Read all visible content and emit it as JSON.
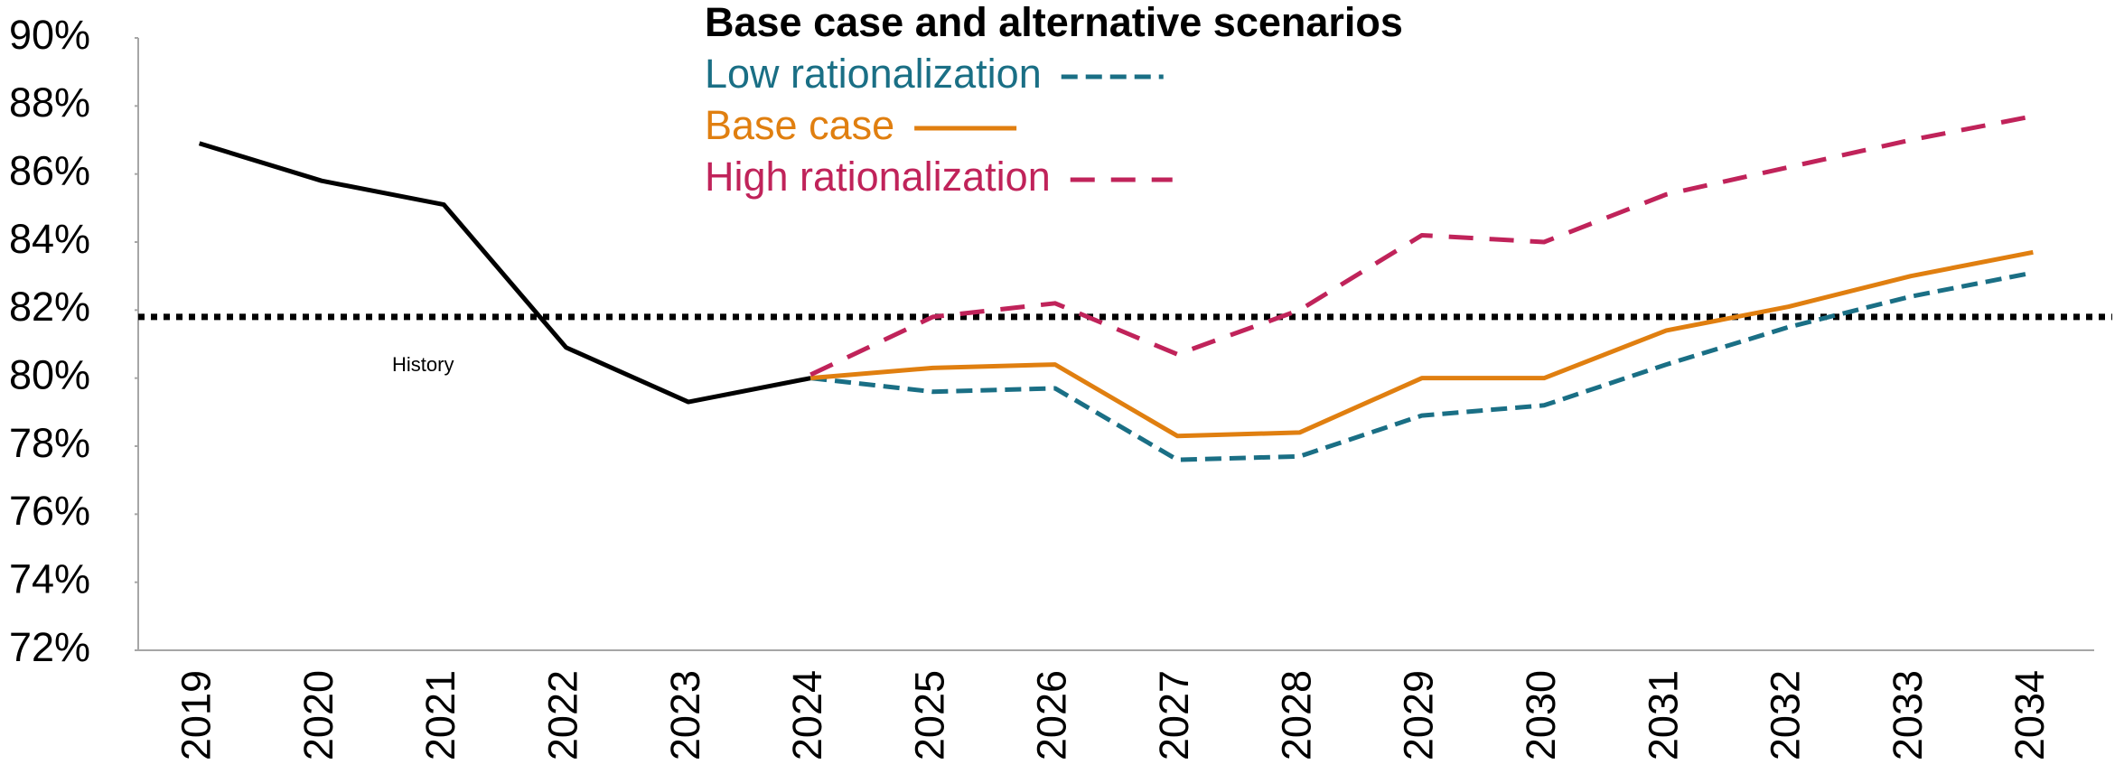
{
  "chart_data": {
    "type": "line",
    "title": "Base case and alternative scenarios",
    "categories": [
      "2019",
      "2020",
      "2021",
      "2022",
      "2023",
      "2024",
      "2025",
      "2026",
      "2027",
      "2028",
      "2029",
      "2030",
      "2031",
      "2032",
      "2033",
      "2034"
    ],
    "series": [
      {
        "name": "History",
        "color": "#000000",
        "dash": "solid",
        "legend": false,
        "values": [
          86.9,
          85.8,
          85.1,
          80.9,
          79.3,
          80.0,
          null,
          null,
          null,
          null,
          null,
          null,
          null,
          null,
          null,
          null
        ]
      },
      {
        "name": "Low rationalization",
        "color": "#1a6f85",
        "dash": "short",
        "legend": true,
        "values": [
          null,
          null,
          null,
          null,
          null,
          80.0,
          79.6,
          79.7,
          77.6,
          77.7,
          78.9,
          79.2,
          80.4,
          81.5,
          82.4,
          83.1
        ]
      },
      {
        "name": "Base case",
        "color": "#e07f10",
        "dash": "solid",
        "legend": true,
        "values": [
          null,
          null,
          null,
          null,
          null,
          80.0,
          80.3,
          80.4,
          78.3,
          78.4,
          80.0,
          80.0,
          81.4,
          82.1,
          83.0,
          83.7
        ]
      },
      {
        "name": "High rationalization",
        "color": "#c0235a",
        "dash": "long",
        "legend": true,
        "values": [
          null,
          null,
          null,
          null,
          null,
          80.1,
          81.8,
          82.2,
          80.7,
          82.0,
          84.2,
          84.0,
          85.4,
          86.2,
          87.0,
          87.7
        ]
      }
    ],
    "reference_line": 81.8,
    "ylim": [
      72,
      90
    ],
    "yticks": [
      {
        "value": 72,
        "label": "72%"
      },
      {
        "value": 74,
        "label": "74%"
      },
      {
        "value": 76,
        "label": "76%"
      },
      {
        "value": 78,
        "label": "78%"
      },
      {
        "value": 80,
        "label": "80%"
      },
      {
        "value": 82,
        "label": "82%"
      },
      {
        "value": 84,
        "label": "84%"
      },
      {
        "value": 86,
        "label": "86%"
      },
      {
        "value": 88,
        "label": "88%"
      },
      {
        "value": 90,
        "label": "90%"
      }
    ],
    "grid": false
  }
}
